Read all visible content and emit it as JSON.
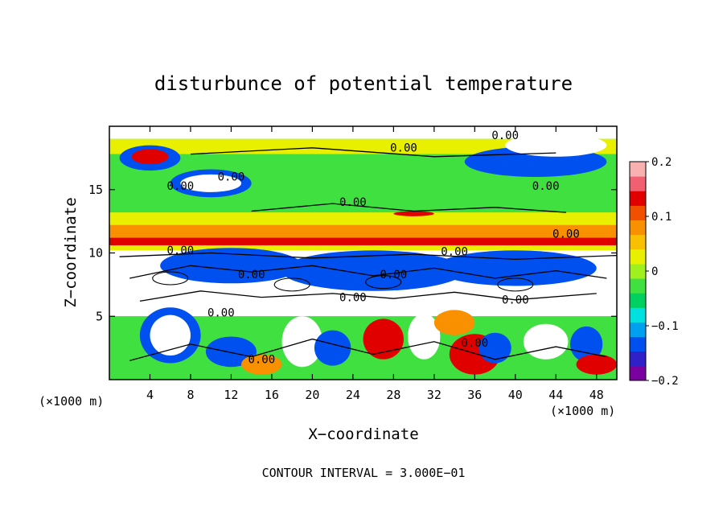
{
  "chart_data": {
    "type": "heatmap",
    "title": "disturbunce of potential temperature",
    "xlabel": "X−coordinate",
    "ylabel": "Z−coordinate",
    "x_unit_label": "(×1000 m)",
    "z_unit_label": "(×1000 m)",
    "xlim": [
      0,
      50
    ],
    "ylim": [
      0,
      20
    ],
    "x_ticks": [
      4,
      8,
      12,
      16,
      20,
      24,
      28,
      32,
      36,
      40,
      44,
      48
    ],
    "x_tick_labels": [
      "4",
      "8",
      "12",
      "16",
      "20",
      "24",
      "28",
      "32",
      "36",
      "40",
      "44",
      "48"
    ],
    "y_ticks": [
      5,
      10,
      15
    ],
    "y_tick_labels": [
      "5",
      "10",
      "15"
    ],
    "colorbar": {
      "range": [
        -0.2,
        0.2
      ],
      "ticks": [
        0.2,
        0.1,
        0,
        -0.1,
        -0.2
      ],
      "tick_labels": [
        "0.2",
        "0.1",
        "0",
        "−0.1",
        "−0.2"
      ],
      "colors": [
        "#7a00a0",
        "#3020c8",
        "#0050f0",
        "#00a0f0",
        "#00e0e0",
        "#00d060",
        "#40e040",
        "#a0f020",
        "#e8f000",
        "#f8c000",
        "#f89000",
        "#f05000",
        "#e00000",
        "#f06070",
        "#f8b0b0"
      ]
    },
    "contour_labels": [
      "0.00",
      "0.00",
      "0.00",
      "0.00",
      "0.00",
      "0.00",
      "0.00",
      "0.00",
      "0.00",
      "0.00",
      "0.00",
      "0.00",
      "0.00",
      "0.00",
      "0.00",
      "0.00"
    ],
    "footer": "CONTOUR INTERVAL = 3.000E−01",
    "colors": {
      "green": "#40e040",
      "yellow": "#e8f000",
      "orange": "#f89000",
      "red": "#e00000",
      "blue": "#0050f0",
      "white": "#ffffff"
    }
  }
}
